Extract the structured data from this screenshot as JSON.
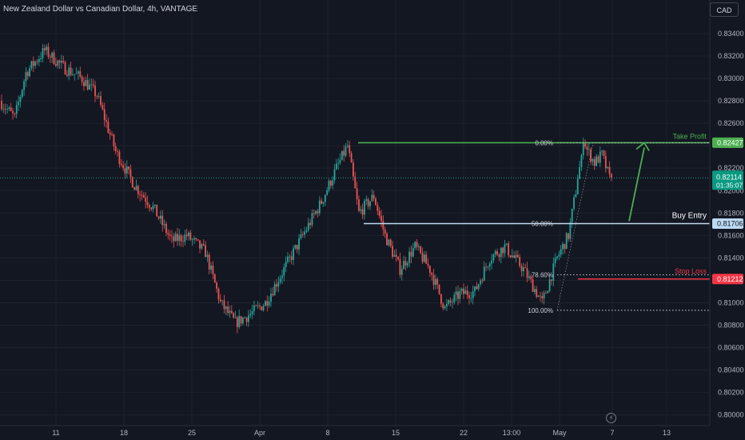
{
  "header": {
    "title": "New Zealand Dollar vs Canadian Dollar, 4h, VANTAGE",
    "currency": "CAD"
  },
  "colors": {
    "background": "#131722",
    "up": "#26a69a",
    "down": "#ef5350",
    "take_profit": "#4caf50",
    "buy_entry": "#bbd9f2",
    "stop_loss": "#f23645",
    "axis_text": "#b2b5be",
    "last_price_bg": "#089981"
  },
  "chart_data": {
    "type": "candlestick",
    "y_axis": {
      "ticks": [
        "0.83400",
        "0.83200",
        "0.83000",
        "0.82800",
        "0.82600",
        "0.82400",
        "0.82200",
        "0.82000",
        "0.81800",
        "0.81600",
        "0.81400",
        "0.81200",
        "0.81000",
        "0.80800",
        "0.80600",
        "0.80400",
        "0.80200",
        "0.80000"
      ],
      "range": [
        0.8,
        0.834
      ]
    },
    "x_axis": {
      "ticks": [
        "11",
        "18",
        "25",
        "Apr",
        "8",
        "15",
        "22",
        "13:00",
        "May",
        "7",
        "13"
      ]
    },
    "anchors": [
      {
        "t": 0,
        "v": 0.828
      },
      {
        "t": 8,
        "v": 0.8265
      },
      {
        "t": 14,
        "v": 0.8305
      },
      {
        "t": 24,
        "v": 0.8325
      },
      {
        "t": 34,
        "v": 0.831
      },
      {
        "t": 44,
        "v": 0.83
      },
      {
        "t": 52,
        "v": 0.8285
      },
      {
        "t": 62,
        "v": 0.8235
      },
      {
        "t": 72,
        "v": 0.8205
      },
      {
        "t": 82,
        "v": 0.8185
      },
      {
        "t": 92,
        "v": 0.8155
      },
      {
        "t": 100,
        "v": 0.816
      },
      {
        "t": 110,
        "v": 0.8145
      },
      {
        "t": 118,
        "v": 0.81
      },
      {
        "t": 126,
        "v": 0.8082
      },
      {
        "t": 134,
        "v": 0.809
      },
      {
        "t": 142,
        "v": 0.81
      },
      {
        "t": 152,
        "v": 0.813
      },
      {
        "t": 162,
        "v": 0.816
      },
      {
        "t": 172,
        "v": 0.819
      },
      {
        "t": 180,
        "v": 0.822
      },
      {
        "t": 186,
        "v": 0.824
      },
      {
        "t": 192,
        "v": 0.818
      },
      {
        "t": 200,
        "v": 0.8195
      },
      {
        "t": 206,
        "v": 0.816
      },
      {
        "t": 214,
        "v": 0.813
      },
      {
        "t": 222,
        "v": 0.815
      },
      {
        "t": 230,
        "v": 0.813
      },
      {
        "t": 238,
        "v": 0.8095
      },
      {
        "t": 246,
        "v": 0.8108
      },
      {
        "t": 254,
        "v": 0.811
      },
      {
        "t": 262,
        "v": 0.814
      },
      {
        "t": 270,
        "v": 0.815
      },
      {
        "t": 280,
        "v": 0.813
      },
      {
        "t": 290,
        "v": 0.81
      },
      {
        "t": 298,
        "v": 0.814
      },
      {
        "t": 304,
        "v": 0.816
      },
      {
        "t": 308,
        "v": 0.82
      },
      {
        "t": 312,
        "v": 0.8242
      },
      {
        "t": 318,
        "v": 0.8225
      },
      {
        "t": 322,
        "v": 0.8232
      },
      {
        "t": 326,
        "v": 0.8211
      }
    ],
    "series": [
      {
        "name": "NZDCAD"
      }
    ],
    "last_price": "0.82114",
    "countdown": "01:35:07",
    "fibonacci": [
      {
        "label": "0.00%",
        "value": 0.82427
      },
      {
        "label": "50.00%",
        "value": 0.81706
      },
      {
        "label": "78.60%",
        "value": 0.8125
      },
      {
        "label": "100.00%",
        "value": 0.80933
      }
    ],
    "annotations": {
      "take_profit": {
        "label": "Take Profit",
        "value": "0.82427"
      },
      "buy_entry": {
        "label": "Buy Entry",
        "value": "0.81706"
      },
      "stop_loss": {
        "label": "Stop Loss",
        "value": "0.81212"
      }
    }
  }
}
